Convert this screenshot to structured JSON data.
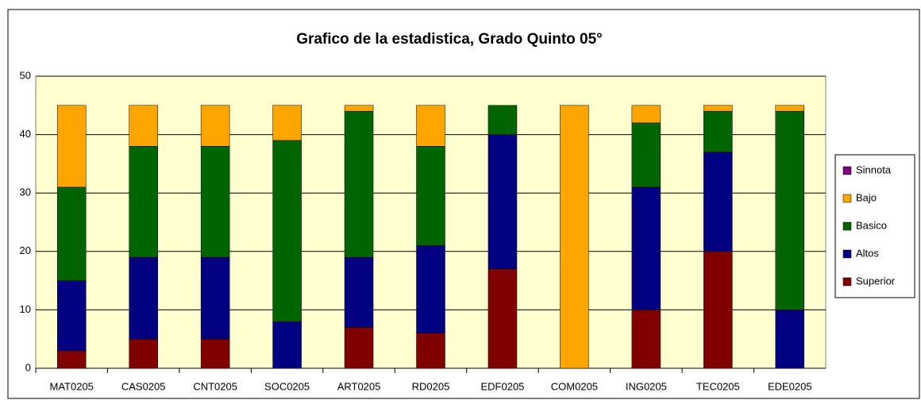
{
  "chart_data": {
    "type": "stacked_bar",
    "title": "Grafico de la estadistica, Grado Quinto 05°",
    "categories": [
      "MAT0205",
      "CAS0205",
      "CNT0205",
      "SOC0205",
      "ART0205",
      "RD0205",
      "EDF0205",
      "COM0205",
      "ING0205",
      "TEC0205",
      "EDE0205"
    ],
    "series": [
      {
        "name": "Superior",
        "color": "#800000",
        "values": [
          3,
          5,
          5,
          0,
          7,
          6,
          17,
          0,
          10,
          20,
          0
        ]
      },
      {
        "name": "Altos",
        "color": "#000080",
        "values": [
          12,
          14,
          14,
          8,
          12,
          15,
          23,
          0,
          21,
          17,
          10
        ]
      },
      {
        "name": "Basico",
        "color": "#006400",
        "values": [
          16,
          19,
          19,
          31,
          25,
          17,
          5,
          0,
          11,
          7,
          34
        ]
      },
      {
        "name": "Bajo",
        "color": "#ffa500",
        "values": [
          14,
          7,
          7,
          6,
          1,
          7,
          0,
          45,
          3,
          1,
          1
        ]
      },
      {
        "name": "Sinnota",
        "color": "#800080",
        "values": [
          0,
          0,
          0,
          0,
          0,
          0,
          0,
          0,
          0,
          0,
          0
        ]
      }
    ],
    "ylim": [
      0,
      50
    ],
    "yticks": [
      0,
      10,
      20,
      30,
      40,
      50
    ],
    "grid": true,
    "legend": "right"
  }
}
